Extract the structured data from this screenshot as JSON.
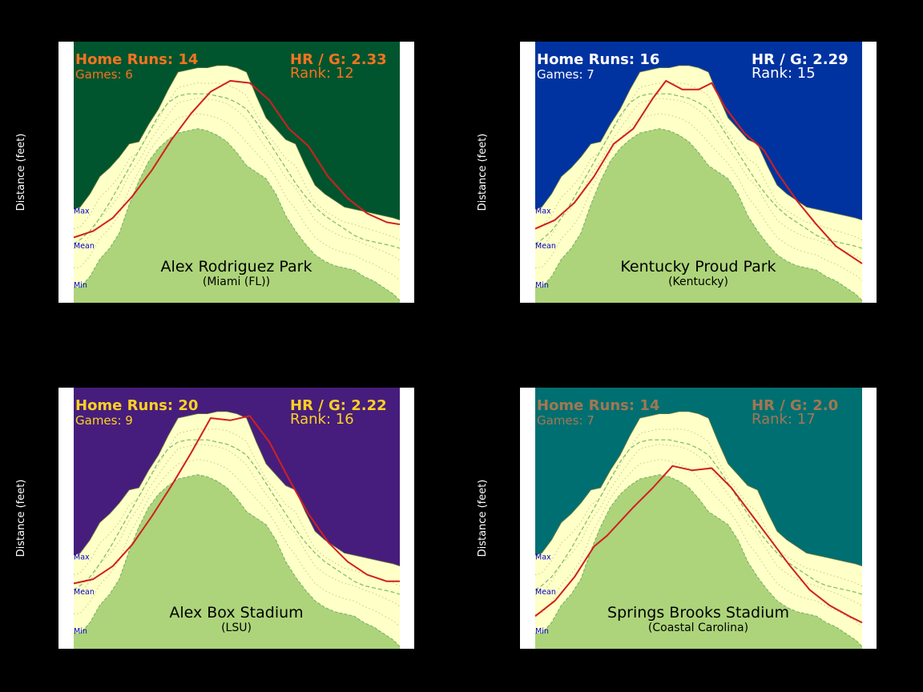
{
  "figure": {
    "background": "#000000",
    "ylabel": "Distance (feet)",
    "yticks": [
      300,
      320,
      340,
      360,
      380,
      400,
      420
    ],
    "ylim": [
      300,
      420
    ],
    "band_labels": [
      "Max",
      "Mean",
      "Min"
    ],
    "band_label_color": "#0000CC",
    "colors": {
      "field_green": "#ADD47A",
      "warning_track": "#FFFFC8",
      "curve_red": "#D02020",
      "dashed_green": "#7EB86A",
      "dotted": "#C8C88C",
      "frame": "#FFFFFF"
    }
  },
  "envelope": {
    "x": [
      0,
      0.02,
      0.05,
      0.08,
      0.11,
      0.14,
      0.17,
      0.2,
      0.23,
      0.26,
      0.29,
      0.32,
      0.35,
      0.38,
      0.41,
      0.44,
      0.47,
      0.5,
      0.53,
      0.56,
      0.59,
      0.62,
      0.65,
      0.68,
      0.71,
      0.74,
      0.77,
      0.8,
      0.83,
      0.86,
      0.89,
      0.92,
      0.95,
      0.98,
      1.0
    ],
    "max": [
      343,
      344,
      350,
      358,
      362,
      367,
      373,
      374,
      382,
      389,
      398,
      406,
      407,
      408,
      408,
      409,
      409,
      408,
      406,
      395,
      385,
      380,
      375,
      373,
      363,
      354,
      350,
      347,
      344,
      343,
      342,
      341,
      340,
      339,
      338
    ],
    "min": [
      307,
      307,
      312,
      320,
      325,
      332,
      345,
      356,
      365,
      371,
      375,
      378,
      379,
      380,
      379,
      377,
      374,
      369,
      363,
      360,
      357,
      350,
      340,
      333,
      327,
      322,
      319,
      317,
      316,
      315,
      312,
      310,
      307,
      304,
      301
    ],
    "mean": [
      327,
      329,
      333,
      339,
      346,
      354,
      362,
      370,
      378,
      386,
      392,
      395,
      396,
      396,
      396,
      395,
      394,
      392,
      389,
      383,
      376,
      369,
      362,
      355,
      349,
      344,
      340,
      337,
      334,
      331,
      329,
      328,
      327,
      326,
      325
    ]
  },
  "chart_data": [
    {
      "type": "area",
      "stadium": "Alex Rodriguez Park",
      "school": "(Miami (FL))",
      "home_runs_label": "Home Runs: 14",
      "games_label": "Games: 6",
      "hr_per_game_label": "HR / G: 2.33",
      "rank_label": "Rank: 12",
      "background_color": "#00552E",
      "text_color": "#F47321",
      "ylabel": "Distance (feet)",
      "ylim": [
        300,
        420
      ],
      "fence_curve": {
        "x": [
          0,
          0.06,
          0.12,
          0.18,
          0.24,
          0.3,
          0.36,
          0.42,
          0.48,
          0.54,
          0.6,
          0.66,
          0.72,
          0.78,
          0.84,
          0.9,
          0.96,
          1.0
        ],
        "y": [
          330,
          333,
          339,
          349,
          361,
          375,
          387,
          397,
          402,
          401,
          393,
          380,
          372,
          358,
          348,
          341,
          337,
          336
        ]
      }
    },
    {
      "type": "area",
      "stadium": "Kentucky Proud Park",
      "school": "(Kentucky)",
      "home_runs_label": "Home Runs: 16",
      "games_label": "Games: 7",
      "hr_per_game_label": "HR / G: 2.29",
      "rank_label": "Rank: 15",
      "background_color": "#0033A0",
      "text_color": "#FFFFFF",
      "ylabel": "Distance (feet)",
      "ylim": [
        300,
        420
      ],
      "fence_curve": {
        "x": [
          0,
          0.06,
          0.12,
          0.18,
          0.24,
          0.3,
          0.36,
          0.4,
          0.45,
          0.5,
          0.54,
          0.58,
          0.64,
          0.7,
          0.74,
          0.8,
          0.86,
          0.92,
          1.0
        ],
        "y": [
          334,
          338,
          346,
          358,
          373,
          380,
          394,
          402,
          398,
          398,
          401,
          390,
          378,
          370,
          360,
          347,
          336,
          326,
          318
        ]
      }
    },
    {
      "type": "area",
      "stadium": "Alex Box Stadium",
      "school": "(LSU)",
      "home_runs_label": "Home Runs: 20",
      "games_label": "Games: 9",
      "hr_per_game_label": "HR / G: 2.22",
      "rank_label": "Rank: 16",
      "background_color": "#461D7C",
      "text_color": "#FDD023",
      "ylabel": "Distance (feet)",
      "ylim": [
        300,
        420
      ],
      "fence_curve": {
        "x": [
          0,
          0.06,
          0.12,
          0.18,
          0.24,
          0.3,
          0.36,
          0.42,
          0.48,
          0.54,
          0.6,
          0.66,
          0.72,
          0.78,
          0.84,
          0.9,
          0.96,
          1.0
        ],
        "y": [
          330,
          332,
          338,
          348,
          361,
          375,
          390,
          406,
          405,
          407,
          395,
          378,
          362,
          349,
          340,
          334,
          331,
          331
        ]
      }
    },
    {
      "type": "area",
      "stadium": "Springs Brooks Stadium",
      "school": "(Coastal Carolina)",
      "home_runs_label": "Home Runs: 14",
      "games_label": "Games: 7",
      "hr_per_game_label": "HR / G: 2.0",
      "rank_label": "Rank: 17",
      "background_color": "#006F71",
      "text_color": "#A27752",
      "ylabel": "Distance (feet)",
      "ylim": [
        300,
        420
      ],
      "fence_curve": {
        "x": [
          0,
          0.06,
          0.12,
          0.18,
          0.22,
          0.3,
          0.36,
          0.42,
          0.48,
          0.54,
          0.6,
          0.66,
          0.72,
          0.78,
          0.84,
          0.9,
          0.96,
          1.0
        ],
        "y": [
          315,
          322,
          333,
          347,
          352,
          365,
          374,
          384,
          382,
          383,
          374,
          362,
          350,
          338,
          327,
          320,
          315,
          312
        ]
      }
    }
  ]
}
